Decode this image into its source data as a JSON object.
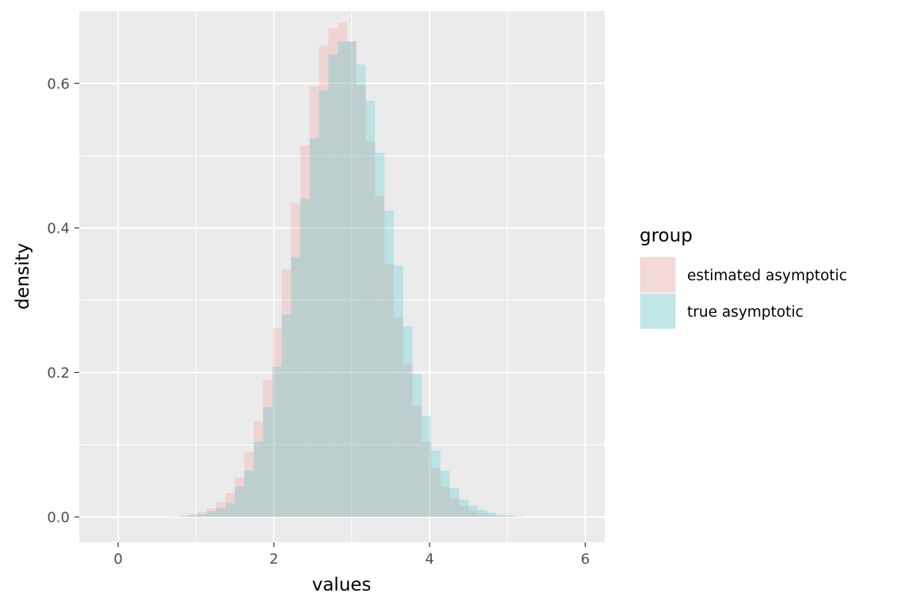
{
  "chart_data": {
    "type": "bar",
    "subtype": "histogram",
    "xlabel": "values",
    "ylabel": "density",
    "xlim": [
      -0.5,
      6.25
    ],
    "ylim": [
      -0.035,
      0.7
    ],
    "x_ticks": [
      0,
      2,
      4,
      6
    ],
    "y_ticks": [
      0.0,
      0.2,
      0.4,
      0.6
    ],
    "y_tick_labels": [
      "0.0",
      "0.2",
      "0.4",
      "0.6"
    ],
    "grid": true,
    "legend": {
      "title": "group",
      "placement": "right"
    },
    "bin_width": 0.12,
    "bin_centers": [
      0.72,
      0.84,
      0.96,
      1.08,
      1.2,
      1.32,
      1.44,
      1.56,
      1.68,
      1.8,
      1.92,
      2.04,
      2.16,
      2.28,
      2.4,
      2.52,
      2.64,
      2.76,
      2.88,
      3.0,
      3.12,
      3.24,
      3.36,
      3.48,
      3.6,
      3.72,
      3.84,
      3.96,
      4.08,
      4.2,
      4.32,
      4.44,
      4.56,
      4.68,
      4.8,
      4.92,
      5.04,
      5.16,
      5.28
    ],
    "series": [
      {
        "name": "estimated asymptotic",
        "color": "#F8766D",
        "opacity": 0.2,
        "values": [
          0.001,
          0.002,
          0.004,
          0.007,
          0.012,
          0.021,
          0.033,
          0.055,
          0.09,
          0.132,
          0.19,
          0.262,
          0.343,
          0.434,
          0.514,
          0.596,
          0.652,
          0.676,
          0.684,
          0.658,
          0.598,
          0.52,
          0.444,
          0.35,
          0.276,
          0.212,
          0.154,
          0.104,
          0.068,
          0.042,
          0.026,
          0.016,
          0.009,
          0.005,
          0.003,
          0.001,
          0.001,
          0.0,
          0.0
        ]
      },
      {
        "name": "true asymptotic",
        "color": "#00BFC4",
        "opacity": 0.2,
        "values": [
          0.0,
          0.001,
          0.002,
          0.004,
          0.008,
          0.012,
          0.019,
          0.042,
          0.064,
          0.104,
          0.152,
          0.208,
          0.28,
          0.36,
          0.44,
          0.524,
          0.59,
          0.64,
          0.658,
          0.658,
          0.626,
          0.576,
          0.504,
          0.424,
          0.348,
          0.264,
          0.198,
          0.14,
          0.092,
          0.064,
          0.04,
          0.024,
          0.016,
          0.01,
          0.006,
          0.003,
          0.002,
          0.001,
          0.0
        ]
      }
    ]
  }
}
